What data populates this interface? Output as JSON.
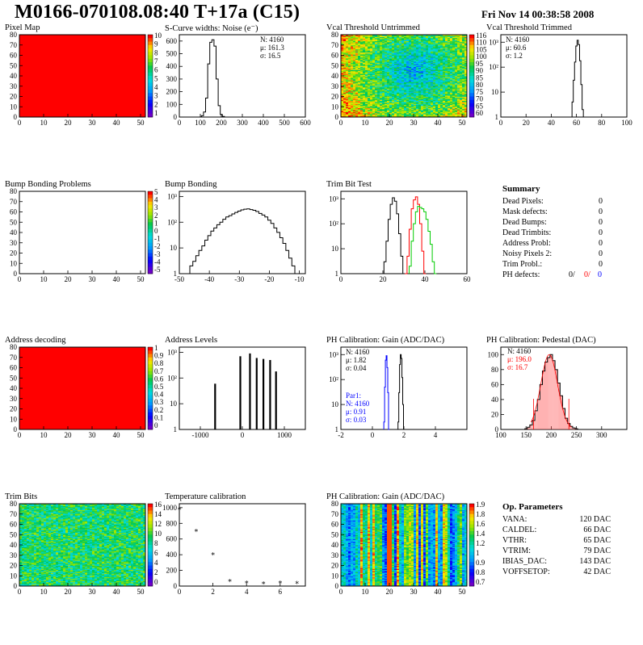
{
  "page": {
    "title": "M0166-070108.08:40 T+17a (C15)",
    "date": "Fri Nov 14 00:38:58 2008"
  },
  "colors": {
    "red": "#ff0000",
    "green": "#00cc00",
    "blue": "#0000ff",
    "black": "#000000"
  },
  "chart_data": [
    {
      "id": "pixel-map",
      "type": "heatmap",
      "title": "Pixel Map",
      "xlim": [
        0,
        52
      ],
      "ylim": [
        0,
        80
      ],
      "xticks": [
        0,
        10,
        20,
        30,
        40,
        50
      ],
      "yticks": [
        0,
        10,
        20,
        30,
        40,
        50,
        60,
        70,
        80
      ],
      "pattern": "uniform",
      "fill_color": "#ff0000",
      "colorbar_ticks": [
        "10",
        "9",
        "8",
        "7",
        "6",
        "5",
        "4",
        "3",
        "2",
        "1"
      ]
    },
    {
      "id": "s-curve-noise",
      "type": "histogram",
      "title": "S-Curve widths: Noise (e⁻)",
      "xlim": [
        0,
        600
      ],
      "ylim": [
        0,
        650
      ],
      "xticks": [
        0,
        100,
        200,
        300,
        400,
        500,
        600
      ],
      "yticks": [
        0,
        100,
        200,
        300,
        400,
        500,
        600
      ],
      "stats": [
        "N: 4160",
        "μ: 161.3",
        "σ: 16.5"
      ],
      "series": [
        {
          "x": [
            100,
            110,
            120,
            130,
            140,
            150,
            160,
            170,
            180,
            190,
            200,
            210,
            220,
            230
          ],
          "values": [
            0,
            10,
            40,
            150,
            420,
            590,
            610,
            560,
            300,
            90,
            20,
            5,
            0,
            0
          ]
        }
      ]
    },
    {
      "id": "vcal-untrimmed",
      "type": "heatmap",
      "title": "Vcal Threshold Untrimmed",
      "xlim": [
        0,
        52
      ],
      "ylim": [
        0,
        80
      ],
      "xticks": [
        0,
        10,
        20,
        30,
        40,
        50
      ],
      "yticks": [
        0,
        10,
        20,
        30,
        40,
        50,
        60,
        70,
        80
      ],
      "pattern": "noise-blue-center",
      "colorbar_ticks": [
        "116",
        "110",
        "105",
        "100",
        "95",
        "90",
        "85",
        "80",
        "75",
        "70",
        "65",
        "60"
      ]
    },
    {
      "id": "vcal-trimmed",
      "type": "histogram",
      "title": "Vcal Threshold Trimmed",
      "log": true,
      "xlim": [
        0,
        100
      ],
      "ylim_log": [
        0,
        3.3
      ],
      "xticks": [
        0,
        20,
        40,
        60,
        80,
        100
      ],
      "yticks_log": [
        "1",
        "10",
        "10²",
        "10³"
      ],
      "stats": [
        "N: 4160",
        "μ: 60.6",
        "σ:  1.2"
      ],
      "series": [
        {
          "x": [
            56,
            57,
            58,
            59,
            60,
            61,
            62,
            63,
            64,
            65,
            66
          ],
          "values": [
            1,
            4,
            30,
            160,
            700,
            1200,
            800,
            180,
            20,
            2,
            1
          ]
        }
      ]
    },
    {
      "id": "bump-bonding-problems",
      "type": "heatmap",
      "title": "Bump Bonding Problems",
      "xlim": [
        0,
        52
      ],
      "ylim": [
        0,
        80
      ],
      "xticks": [
        0,
        10,
        20,
        30,
        40,
        50
      ],
      "yticks": [
        0,
        10,
        20,
        30,
        40,
        50,
        60,
        70,
        80
      ],
      "pattern": "empty",
      "colorbar_ticks": [
        "5",
        "4",
        "3",
        "2",
        "1",
        "0",
        "-1",
        "-2",
        "-3",
        "-4",
        "-5"
      ]
    },
    {
      "id": "bump-bonding",
      "type": "histogram",
      "title": "Bump Bonding",
      "log": true,
      "xlim": [
        -50,
        -8
      ],
      "ylim_log": [
        0,
        3.2
      ],
      "xticks": [
        -50,
        -40,
        -30,
        -20,
        -10
      ],
      "yticks_log": [
        "1",
        "10",
        "10²",
        "10³"
      ],
      "series": [
        {
          "x": [
            -48,
            -47,
            -46,
            -45,
            -44,
            -43,
            -42,
            -41,
            -40,
            -39,
            -38,
            -37,
            -36,
            -35,
            -34,
            -33,
            -32,
            -31,
            -30,
            -29,
            -28,
            -27,
            -26,
            -25,
            -24,
            -23,
            -22,
            -21,
            -20,
            -19,
            -18,
            -17,
            -16,
            -15,
            -14,
            -13,
            -12,
            -11,
            -10
          ],
          "values": [
            1,
            1,
            2,
            3,
            5,
            8,
            12,
            20,
            30,
            45,
            60,
            80,
            100,
            130,
            160,
            180,
            210,
            240,
            270,
            300,
            320,
            330,
            310,
            290,
            260,
            220,
            190,
            160,
            120,
            90,
            60,
            40,
            25,
            15,
            8,
            4,
            2,
            1,
            1
          ]
        }
      ]
    },
    {
      "id": "trim-bit-test",
      "type": "histogram",
      "title": "Trim Bit Test",
      "log": true,
      "xlim": [
        0,
        60
      ],
      "ylim_log": [
        0,
        3.3
      ],
      "xticks": [
        0,
        20,
        40,
        60
      ],
      "yticks_log": [
        "1",
        "10",
        "10²",
        "10³"
      ],
      "series": [
        {
          "color": "#000000",
          "x": [
            20,
            21,
            22,
            23,
            24,
            25,
            26,
            27,
            28,
            29,
            30
          ],
          "values": [
            1,
            3,
            20,
            150,
            600,
            1100,
            800,
            250,
            40,
            5,
            1
          ]
        },
        {
          "color": "#ff0000",
          "x": [
            31,
            32,
            33,
            34,
            35,
            36,
            37,
            38,
            39,
            40
          ],
          "values": [
            1,
            5,
            60,
            400,
            900,
            1200,
            600,
            100,
            8,
            1
          ]
        },
        {
          "color": "#00cc00",
          "x": [
            33,
            34,
            35,
            36,
            37,
            38,
            39,
            40,
            41,
            42,
            43,
            44,
            45
          ],
          "values": [
            2,
            20,
            100,
            300,
            500,
            450,
            400,
            300,
            150,
            50,
            15,
            3,
            1
          ]
        }
      ]
    },
    {
      "id": "address-decoding",
      "type": "heatmap",
      "title": "Address decoding",
      "xlim": [
        0,
        52
      ],
      "ylim": [
        0,
        80
      ],
      "xticks": [
        0,
        10,
        20,
        30,
        40,
        50
      ],
      "yticks": [
        0,
        10,
        20,
        30,
        40,
        50,
        60,
        70,
        80
      ],
      "pattern": "uniform",
      "fill_color": "#ff0000",
      "colorbar_ticks": [
        "1",
        "0.9",
        "0.8",
        "0.7",
        "0.6",
        "0.5",
        "0.4",
        "0.3",
        "0.2",
        "0.1",
        "0"
      ]
    },
    {
      "id": "address-levels",
      "type": "histogram",
      "title": "Address Levels",
      "log": true,
      "xlim": [
        -1500,
        1500
      ],
      "ylim_log": [
        0,
        3.2
      ],
      "xticks": [
        -1000,
        0,
        1000
      ],
      "yticks_log": [
        "1",
        "10",
        "10²",
        "10³"
      ],
      "spikes": [
        {
          "x": -650,
          "value": 60
        },
        {
          "x": -50,
          "value": 700
        },
        {
          "x": 180,
          "value": 900
        },
        {
          "x": 340,
          "value": 600
        },
        {
          "x": 500,
          "value": 550
        },
        {
          "x": 660,
          "value": 500
        },
        {
          "x": 800,
          "value": 180
        }
      ]
    },
    {
      "id": "ph-gain",
      "type": "histogram",
      "title": "PH Calibration: Gain (ADC/DAC)",
      "log": true,
      "xlim": [
        -2,
        6
      ],
      "ylim_log": [
        0,
        3.3
      ],
      "xticks": [
        -2,
        0,
        2,
        4
      ],
      "yticks_log": [
        "1",
        "10",
        "10²",
        "10³"
      ],
      "stats": [
        "N: 4160",
        "μ: 1.82",
        "σ: 0.04"
      ],
      "stats2": [
        "Par1:",
        "N: 4160",
        "μ: 0.91",
        "σ: 0.03"
      ],
      "series": [
        {
          "color": "#000000",
          "x": [
            1.65,
            1.7,
            1.75,
            1.8,
            1.85,
            1.9,
            1.95,
            2.0
          ],
          "values": [
            2,
            30,
            400,
            1000,
            700,
            120,
            10,
            1
          ]
        },
        {
          "color": "#0000ff",
          "x": [
            0.75,
            0.8,
            0.85,
            0.9,
            0.95,
            1.0,
            1.05
          ],
          "values": [
            2,
            50,
            600,
            900,
            300,
            30,
            1
          ]
        }
      ]
    },
    {
      "id": "ph-pedestal",
      "type": "histogram",
      "title": "PH Calibration: Pedestal (DAC)",
      "xlim": [
        100,
        350
      ],
      "ylim": [
        0,
        110
      ],
      "xticks": [
        100,
        150,
        200,
        250,
        300
      ],
      "yticks": [
        0,
        20,
        40,
        60,
        80,
        100
      ],
      "stats": [
        "N: 4160",
        "μ: 196.0",
        "σ: 16.7"
      ],
      "series": [
        {
          "x": [
            150,
            155,
            160,
            165,
            170,
            175,
            180,
            185,
            190,
            195,
            200,
            205,
            210,
            215,
            220,
            225,
            230,
            235,
            240,
            245,
            250
          ],
          "values": [
            1,
            3,
            6,
            12,
            25,
            40,
            60,
            78,
            90,
            96,
            100,
            92,
            80,
            62,
            45,
            28,
            15,
            8,
            4,
            2,
            1
          ]
        }
      ],
      "fit_range": [
        165,
        235
      ]
    },
    {
      "id": "trim-bits",
      "type": "heatmap",
      "title": "Trim Bits",
      "xlim": [
        0,
        52
      ],
      "ylim": [
        0,
        80
      ],
      "xticks": [
        0,
        10,
        20,
        30,
        40,
        50
      ],
      "yticks": [
        0,
        10,
        20,
        30,
        40,
        50,
        60,
        70,
        80
      ],
      "pattern": "noise-green",
      "colorbar_ticks": [
        "16",
        "14",
        "12",
        "10",
        "8",
        "6",
        "4",
        "2",
        "0"
      ]
    },
    {
      "id": "temperature-calibration",
      "type": "scatter",
      "title": "Temperature calibration",
      "xlim": [
        0,
        7.5
      ],
      "ylim": [
        0,
        1050
      ],
      "xticks": [
        0,
        2,
        4,
        6
      ],
      "yticks": [
        0,
        200,
        400,
        600,
        800,
        1000
      ],
      "x": [
        0,
        1,
        2,
        3,
        4,
        5,
        6,
        7
      ],
      "y": [
        1000,
        720,
        420,
        80,
        60,
        50,
        60,
        55
      ]
    },
    {
      "id": "ph-gain-map",
      "type": "heatmap",
      "title": "PH Calibration: Gain (ADC/DAC)",
      "xlim": [
        0,
        52
      ],
      "ylim": [
        0,
        80
      ],
      "xticks": [
        0,
        10,
        20,
        30,
        40,
        50
      ],
      "yticks": [
        0,
        10,
        20,
        30,
        40,
        50,
        60,
        70,
        80
      ],
      "pattern": "columns",
      "colorbar_ticks": [
        "1.9",
        "1.8",
        "1.6",
        "1.4",
        "1.2",
        "1",
        "0.9",
        "0.8",
        "0.7"
      ]
    }
  ],
  "summary": {
    "title": "Summary",
    "rows": [
      {
        "label": "Dead Pixels:",
        "value": "0"
      },
      {
        "label": "Mask defects:",
        "value": "0"
      },
      {
        "label": "Dead Bumps:",
        "value": "0"
      },
      {
        "label": "Dead Trimbits:",
        "value": "0"
      },
      {
        "label": "Address Probl:",
        "value": "0"
      },
      {
        "label": "Noisy Pixels 2:",
        "value": "0"
      },
      {
        "label": "Trim Probl.:",
        "value": "0"
      }
    ],
    "ph_label": "PH defects:",
    "ph_values": [
      "0/",
      "0/",
      "0"
    ]
  },
  "op_parameters": {
    "title": "Op. Parameters",
    "rows": [
      {
        "label": "VANA:",
        "value": "120 DAC"
      },
      {
        "label": "CALDEL:",
        "value": "66 DAC"
      },
      {
        "label": "VTHR:",
        "value": "65 DAC"
      },
      {
        "label": "VTRIM:",
        "value": "79 DAC"
      },
      {
        "label": "IBIAS_DAC:",
        "value": "143 DAC"
      },
      {
        "label": "VOFFSETOP:",
        "value": "42 DAC"
      }
    ]
  }
}
